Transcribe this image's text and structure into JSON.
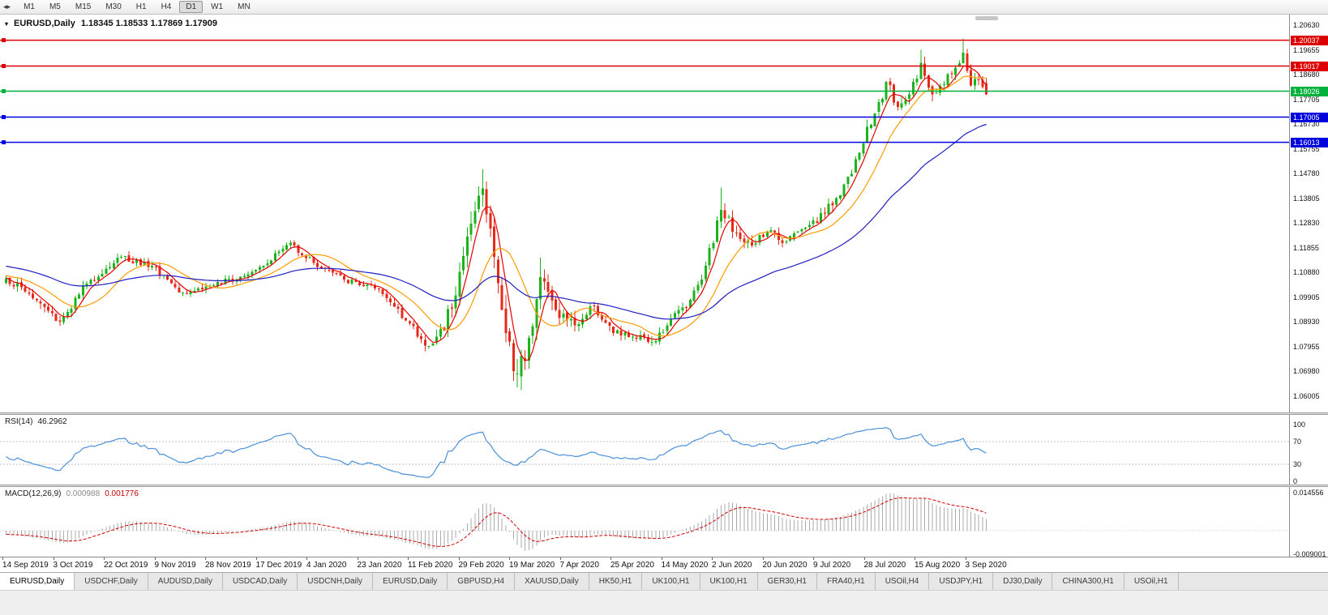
{
  "toolbar": {
    "icons": [
      {
        "name": "scroll-left-icon",
        "glyph": "◂"
      },
      {
        "name": "scroll-right-icon",
        "glyph": "▸"
      }
    ],
    "timeframe_buttons": [
      "M1",
      "M5",
      "M15",
      "M30",
      "H1",
      "H4",
      "D1",
      "W1",
      "MN"
    ],
    "active_timeframe": "D1"
  },
  "chart": {
    "menu_icon_glyph": "▾",
    "symbol_title": "EURUSD,Daily",
    "ohlc_string": "1.18345 1.18533 1.17869 1.17909",
    "price_labels": [
      "1.20630",
      "1.19655",
      "1.18680",
      "1.17705",
      "1.16730",
      "1.15755",
      "1.14780",
      "1.13805",
      "1.12830",
      "1.11855",
      "1.10880",
      "1.09905",
      "1.08930",
      "1.07955",
      "1.06980",
      "1.06005"
    ],
    "levels": [
      {
        "price": "1.20037",
        "value": 1.20037,
        "color": "#dd0000",
        "type": "resistance"
      },
      {
        "price": "1.19017",
        "value": 1.19017,
        "color": "#dd0000",
        "type": "resistance"
      },
      {
        "price": "1.18026",
        "value": 1.18026,
        "color": "#00b13c",
        "type": "current"
      },
      {
        "price": "1.17005",
        "value": 1.17005,
        "color": "#0000dd",
        "type": "support"
      },
      {
        "price": "1.16013",
        "value": 1.16013,
        "color": "#0000dd",
        "type": "support"
      }
    ],
    "date_labels": [
      "14 Sep 2019",
      "3 Oct 2019",
      "22 Oct 2019",
      "9 Nov 2019",
      "28 Nov 2019",
      "17 Dec 2019",
      "4 Jan 2020",
      "23 Jan 2020",
      "11 Feb 2020",
      "29 Feb 2020",
      "19 Mar 2020",
      "7 Apr 2020",
      "25 Apr 2020",
      "14 May 2020",
      "2 Jun 2020",
      "20 Jun 2020",
      "9 Jul 2020",
      "28 Jul 2020",
      "15 Aug 2020",
      "3 Sep 2020"
    ]
  },
  "rsi_panel": {
    "name": "RSI(14)",
    "value": "46.2962",
    "axis_labels": [
      "100",
      "70",
      "30",
      "0"
    ],
    "level_lines": [
      70,
      30
    ],
    "line_color": "#4a90d9"
  },
  "macd_panel": {
    "name": "MACD(12,26,9)",
    "main_value": "0.000988",
    "signal_value": "0.001776",
    "axis_top": "0.014556",
    "axis_bottom": "-0.009001",
    "histogram_color": "#ababab",
    "signal_color": "#d40000"
  },
  "bottom_tabs": {
    "active_index": 0,
    "tabs": [
      "EURUSD,Daily",
      "USDCHF,Daily",
      "AUDUSD,Daily",
      "USDCAD,Daily",
      "USDCNH,Daily",
      "EURUSD,Daily",
      "GBPUSD,H4",
      "XAUUSD,Daily",
      "HK50,H1",
      "UK100,H1",
      "UK100,H1",
      "GER30,H1",
      "FRA40,H1",
      "USOil,H4",
      "USDJPY,H1",
      "DJ30,Daily",
      "CHINA300,H1",
      "USOil,H1"
    ]
  },
  "chart_data": {
    "type": "candlestick",
    "symbol": "EURUSD",
    "timeframe": "D1",
    "bars": 256,
    "price_range": {
      "min": 1.06005,
      "max": 1.2063,
      "tick_step": 0.00975
    },
    "up_color": "#1cb21c",
    "down_color": "#e62a1a",
    "anchors": [
      [
        0,
        1.1065,
        0.0042
      ],
      [
        6,
        1.1005,
        0.004
      ],
      [
        14,
        1.0895,
        0.004
      ],
      [
        22,
        1.106,
        0.0042
      ],
      [
        30,
        1.115,
        0.0038
      ],
      [
        38,
        1.1115,
        0.0032
      ],
      [
        46,
        1.101,
        0.003
      ],
      [
        56,
        1.1045,
        0.0028
      ],
      [
        66,
        1.111,
        0.003
      ],
      [
        74,
        1.1205,
        0.0032
      ],
      [
        80,
        1.1125,
        0.003
      ],
      [
        88,
        1.106,
        0.0028
      ],
      [
        96,
        1.1025,
        0.003
      ],
      [
        102,
        1.0945,
        0.0036
      ],
      [
        109,
        1.08,
        0.0045
      ],
      [
        114,
        1.086,
        0.0065
      ],
      [
        118,
        1.109,
        0.0085
      ],
      [
        121,
        1.128,
        0.0095
      ],
      [
        124,
        1.142,
        0.0105
      ],
      [
        127,
        1.115,
        0.012
      ],
      [
        130,
        1.085,
        0.0125
      ],
      [
        133,
        1.069,
        0.012
      ],
      [
        136,
        1.083,
        0.0105
      ],
      [
        139,
        1.107,
        0.009
      ],
      [
        143,
        1.094,
        0.0065
      ],
      [
        148,
        1.088,
        0.005
      ],
      [
        153,
        1.0955,
        0.0042
      ],
      [
        158,
        1.085,
        0.004
      ],
      [
        163,
        1.0835,
        0.0038
      ],
      [
        168,
        1.0815,
        0.004
      ],
      [
        173,
        1.0905,
        0.004
      ],
      [
        178,
        1.098,
        0.0042
      ],
      [
        182,
        1.1115,
        0.005
      ],
      [
        186,
        1.1335,
        0.0058
      ],
      [
        190,
        1.1245,
        0.0052
      ],
      [
        194,
        1.1195,
        0.0048
      ],
      [
        198,
        1.125,
        0.0042
      ],
      [
        203,
        1.121,
        0.004
      ],
      [
        208,
        1.1265,
        0.0038
      ],
      [
        213,
        1.132,
        0.004
      ],
      [
        218,
        1.1435,
        0.0048
      ],
      [
        222,
        1.156,
        0.0052
      ],
      [
        226,
        1.1715,
        0.0058
      ],
      [
        229,
        1.184,
        0.006
      ],
      [
        232,
        1.174,
        0.0055
      ],
      [
        235,
        1.179,
        0.0048
      ],
      [
        238,
        1.1915,
        0.0055
      ],
      [
        241,
        1.179,
        0.005
      ],
      [
        244,
        1.183,
        0.0045
      ],
      [
        247,
        1.1895,
        0.0048
      ],
      [
        249,
        1.1955,
        0.0058
      ],
      [
        251,
        1.1825,
        0.005
      ],
      [
        253,
        1.1848,
        0.0042
      ],
      [
        255,
        1.17909,
        0.004
      ]
    ],
    "wick_overrides": [
      {
        "i": 14,
        "low": 1.0879
      },
      {
        "i": 109,
        "low": 1.0778
      },
      {
        "i": 124,
        "high": 1.1495
      },
      {
        "i": 133,
        "low": 1.0636
      },
      {
        "i": 139,
        "high": 1.1147
      },
      {
        "i": 186,
        "high": 1.1422
      },
      {
        "i": 238,
        "high": 1.1966
      },
      {
        "i": 249,
        "high": 1.2011
      }
    ],
    "last_bar": {
      "open": 1.18345,
      "high": 1.18533,
      "low": 1.17869,
      "close": 1.17909
    },
    "moving_averages": [
      {
        "period": 5,
        "type": "sma",
        "color": "#e60000"
      },
      {
        "period": 14,
        "type": "sma",
        "color": "#ff9a00"
      },
      {
        "period": 50,
        "type": "ema",
        "color": "#1d1dc2"
      }
    ],
    "prehistory": {
      "bars": 100,
      "start_price": 1.127
    }
  }
}
